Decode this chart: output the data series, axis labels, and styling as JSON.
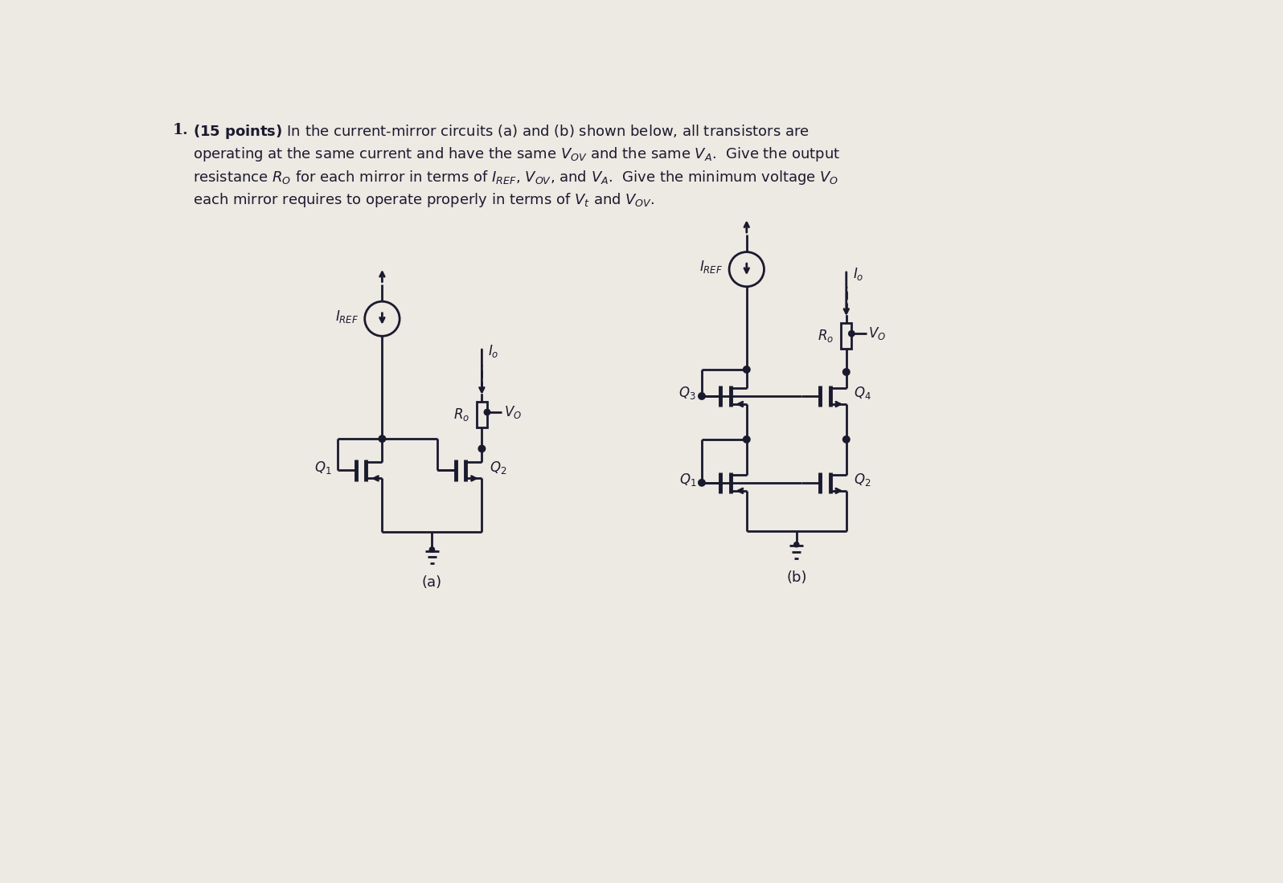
{
  "bg_color": "#ede9e3",
  "line_color": "#1a1a2e",
  "text_color": "#1a1a2e",
  "lw": 2.0,
  "fig_w": 15.96,
  "fig_h": 10.99,
  "title_lines": [
    "1.  (15 points) In the current-mirror circuits (a) and (b) shown below, all transistors are",
    "operating at the same current and have the same $V_{OV}$ and the same $V_A$. Give the output",
    "resistance $R_O$ for each mirror in terms of $I_{REF}$, $V_{OV}$, and $V_A$. Give the minimum voltage $V_O$",
    "each mirror requires to operate properly in terms of $V_t$ and $V_{OV}$."
  ]
}
